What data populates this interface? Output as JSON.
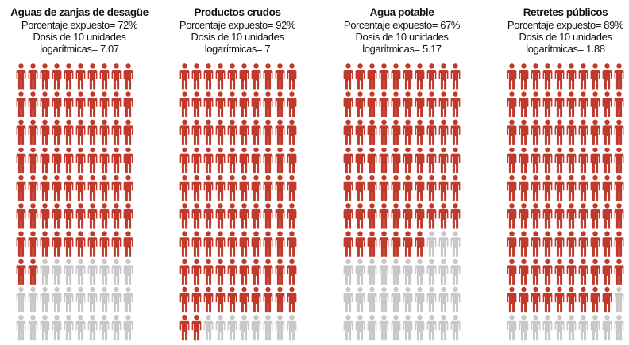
{
  "colors": {
    "exposed": "#c0392b",
    "unexposed": "#c8c8c8",
    "text": "#111111"
  },
  "icon": "person-icon",
  "chart_data": [
    {
      "type": "pictogram",
      "title": "Aguas de zanjas de desagüe",
      "exposed_line": "Porcentaje expuesto= 72%",
      "dose_line1": "Dosis de 10 unidades",
      "dose_line2": "logarítmicas= 7.07",
      "percent_exposed": 72,
      "log_dose": 7.07,
      "total_icons": 100
    },
    {
      "type": "pictogram",
      "title": "Productos crudos",
      "exposed_line": "Porcentaje expuesto= 92%",
      "dose_line1": "Dosis de 10 unidades",
      "dose_line2": "logarítmicas= 7",
      "percent_exposed": 92,
      "log_dose": 7,
      "total_icons": 100
    },
    {
      "type": "pictogram",
      "title": "Agua potable",
      "exposed_line": "Porcentaje expuesto= 67%",
      "dose_line1": "Dosis de 10 unidades",
      "dose_line2": "logarítmicas= 5.17",
      "percent_exposed": 67,
      "log_dose": 5.17,
      "total_icons": 100
    },
    {
      "type": "pictogram",
      "title": "Retretes públicos",
      "exposed_line": "Porcentaje expuesto= 89%",
      "dose_line1": "Dosis de 10 unidades",
      "dose_line2": "logarítmicas= 1.88",
      "percent_exposed": 89,
      "log_dose": 1.88,
      "total_icons": 100
    }
  ]
}
